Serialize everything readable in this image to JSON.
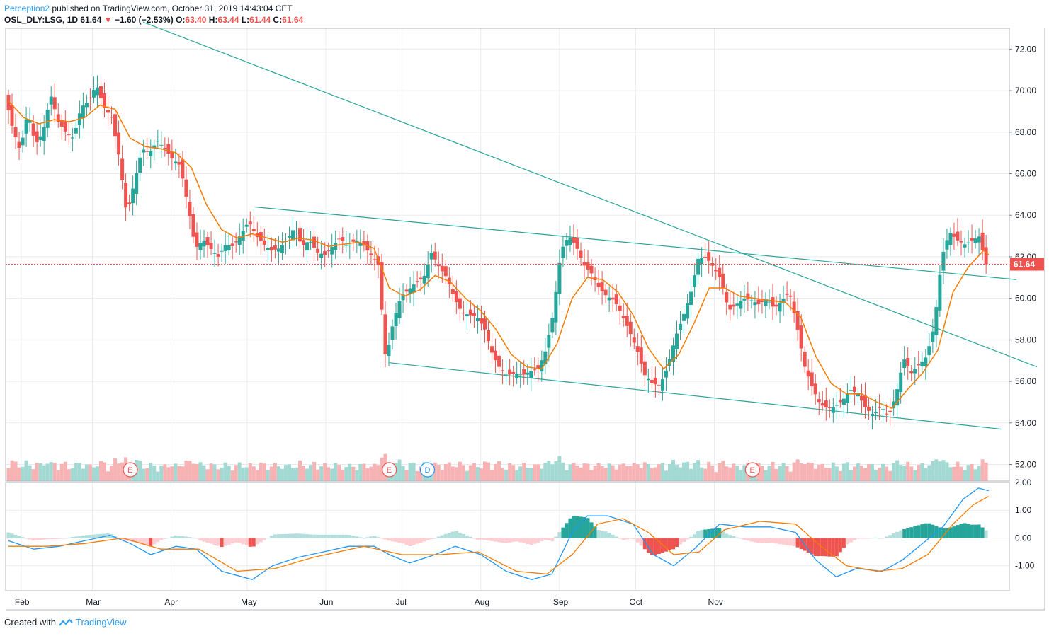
{
  "header": {
    "author": "Perception2",
    "published": "published on TradingView.com, October 31, 2019 14:43:04 CET",
    "symbol": "OSL_DLY:LSG, 1D",
    "last": "61.64",
    "change": "−1.60 (−2.53%)",
    "open_label": "O:",
    "open": "63.40",
    "high_label": "H:",
    "high": "63.44",
    "low_label": "L:",
    "low": "61.44",
    "close_label": "C:",
    "close": "61.64"
  },
  "footer": {
    "created_with": "Created with",
    "brand": "TradingView"
  },
  "colors": {
    "up": "#26a69a",
    "down": "#ef5350",
    "ema": "#f57c00",
    "trend": "#26a69a",
    "macd": "#2196f3",
    "signal": "#f57c00",
    "price_line": "#ef5350",
    "grid": "#e8ecf1"
  },
  "chart_data": {
    "type": "candlestick",
    "symbol": "OSL_DLY:LSG",
    "interval": "1D",
    "y_axis": {
      "ticks": [
        "72.00",
        "70.00",
        "68.00",
        "66.00",
        "64.00",
        "62.00",
        "60.00",
        "58.00",
        "56.00",
        "54.00",
        "52.00"
      ],
      "ylim": [
        51.2,
        73.0
      ]
    },
    "macd_axis": {
      "ticks": [
        "2.00",
        "1.00",
        "0.00",
        "-1.00"
      ],
      "ylim": [
        -1.9,
        2.0
      ]
    },
    "x_axis": {
      "labels": [
        "Feb",
        "Mar",
        "Apr",
        "May",
        "Jun",
        "Jul",
        "Aug",
        "Sep",
        "Oct",
        "Nov"
      ]
    },
    "last_price_label": "61.64",
    "last_price": 61.64,
    "event_markers": [
      {
        "label": "E",
        "day": 48
      },
      {
        "label": "E",
        "day": 150
      },
      {
        "label": "D",
        "day": 165
      },
      {
        "label": "E",
        "day": 293
      }
    ],
    "trendlines": [
      {
        "from": [
          53,
          73.3
        ],
        "to": [
          405,
          56.7
        ]
      },
      {
        "from": [
          97,
          64.4
        ],
        "to": [
          397,
          60.9
        ]
      },
      {
        "from": [
          150,
          56.9
        ],
        "to": [
          391,
          53.7
        ]
      }
    ],
    "close_points": [
      [
        0,
        69.8
      ],
      [
        3,
        68.2
      ],
      [
        6,
        67.1
      ],
      [
        9,
        69.0
      ],
      [
        12,
        67.4
      ],
      [
        15,
        68.0
      ],
      [
        18,
        69.8
      ],
      [
        21,
        68.5
      ],
      [
        24,
        68.0
      ],
      [
        27,
        67.7
      ],
      [
        30,
        69.2
      ],
      [
        33,
        69.5
      ],
      [
        36,
        70.3
      ],
      [
        39,
        69.2
      ],
      [
        42,
        68.7
      ],
      [
        45,
        66.8
      ],
      [
        48,
        64.0
      ],
      [
        51,
        65.6
      ],
      [
        54,
        67.2
      ],
      [
        57,
        67.0
      ],
      [
        60,
        67.6
      ],
      [
        63,
        67.2
      ],
      [
        66,
        66.7
      ],
      [
        69,
        66.4
      ],
      [
        72,
        64.5
      ],
      [
        75,
        62.4
      ],
      [
        78,
        62.8
      ],
      [
        81,
        62.4
      ],
      [
        84,
        62.0
      ],
      [
        87,
        62.6
      ],
      [
        90,
        62.5
      ],
      [
        93,
        63.1
      ],
      [
        96,
        63.7
      ],
      [
        99,
        63.0
      ],
      [
        102,
        62.6
      ],
      [
        105,
        62.3
      ],
      [
        108,
        62.4
      ],
      [
        111,
        62.8
      ],
      [
        114,
        63.4
      ],
      [
        117,
        62.5
      ],
      [
        120,
        62.8
      ],
      [
        123,
        62.2
      ],
      [
        126,
        62.1
      ],
      [
        129,
        62.5
      ],
      [
        132,
        62.9
      ],
      [
        135,
        62.5
      ],
      [
        138,
        62.8
      ],
      [
        141,
        62.6
      ],
      [
        144,
        62.1
      ],
      [
        147,
        61.6
      ],
      [
        150,
        57.0
      ],
      [
        153,
        58.9
      ],
      [
        156,
        60.1
      ],
      [
        159,
        60.4
      ],
      [
        162,
        60.8
      ],
      [
        165,
        61.0
      ],
      [
        168,
        62.2
      ],
      [
        171,
        61.5
      ],
      [
        174,
        61.0
      ],
      [
        177,
        60.0
      ],
      [
        180,
        59.3
      ],
      [
        183,
        59.2
      ],
      [
        186,
        59.1
      ],
      [
        189,
        58.5
      ],
      [
        192,
        57.3
      ],
      [
        195,
        56.6
      ],
      [
        198,
        56.3
      ],
      [
        201,
        56.4
      ],
      [
        204,
        56.3
      ],
      [
        207,
        56.5
      ],
      [
        210,
        56.6
      ],
      [
        213,
        57.5
      ],
      [
        216,
        59.3
      ],
      [
        219,
        62.3
      ],
      [
        222,
        63.0
      ],
      [
        225,
        62.5
      ],
      [
        228,
        61.6
      ],
      [
        231,
        61.2
      ],
      [
        234,
        60.5
      ],
      [
        237,
        60.1
      ],
      [
        240,
        59.9
      ],
      [
        243,
        59.2
      ],
      [
        246,
        58.4
      ],
      [
        249,
        57.5
      ],
      [
        252,
        56.3
      ],
      [
        255,
        55.9
      ],
      [
        258,
        55.8
      ],
      [
        261,
        56.7
      ],
      [
        264,
        58.1
      ],
      [
        267,
        59.1
      ],
      [
        270,
        60.2
      ],
      [
        273,
        61.9
      ],
      [
        276,
        62.0
      ],
      [
        279,
        61.5
      ],
      [
        282,
        60.9
      ],
      [
        285,
        59.4
      ],
      [
        288,
        59.7
      ],
      [
        291,
        60.0
      ],
      [
        294,
        59.9
      ],
      [
        297,
        59.7
      ],
      [
        300,
        60.0
      ],
      [
        303,
        59.5
      ],
      [
        306,
        59.9
      ],
      [
        309,
        60.3
      ],
      [
        312,
        58.6
      ],
      [
        315,
        56.7
      ],
      [
        318,
        55.7
      ],
      [
        321,
        54.9
      ],
      [
        324,
        54.7
      ],
      [
        327,
        54.8
      ],
      [
        330,
        55.1
      ],
      [
        333,
        55.6
      ],
      [
        336,
        55.4
      ],
      [
        339,
        54.7
      ],
      [
        342,
        54.4
      ],
      [
        345,
        54.8
      ],
      [
        348,
        54.3
      ],
      [
        351,
        55.4
      ],
      [
        354,
        57.1
      ],
      [
        357,
        56.4
      ],
      [
        360,
        56.8
      ],
      [
        363,
        57.2
      ],
      [
        366,
        58.7
      ],
      [
        369,
        62.0
      ],
      [
        372,
        63.2
      ],
      [
        375,
        62.8
      ],
      [
        378,
        62.6
      ],
      [
        381,
        62.8
      ],
      [
        384,
        63.0
      ],
      [
        386,
        61.64
      ]
    ],
    "ema_points": [
      [
        0,
        69.5
      ],
      [
        6,
        68.7
      ],
      [
        12,
        68.4
      ],
      [
        18,
        68.6
      ],
      [
        24,
        68.5
      ],
      [
        30,
        68.7
      ],
      [
        36,
        69.3
      ],
      [
        42,
        69.1
      ],
      [
        48,
        67.7
      ],
      [
        54,
        67.3
      ],
      [
        60,
        67.2
      ],
      [
        66,
        67.0
      ],
      [
        72,
        66.3
      ],
      [
        78,
        64.5
      ],
      [
        84,
        63.3
      ],
      [
        90,
        62.9
      ],
      [
        96,
        63.1
      ],
      [
        102,
        62.9
      ],
      [
        108,
        62.7
      ],
      [
        114,
        62.9
      ],
      [
        120,
        62.8
      ],
      [
        126,
        62.5
      ],
      [
        132,
        62.6
      ],
      [
        138,
        62.7
      ],
      [
        144,
        62.4
      ],
      [
        150,
        60.5
      ],
      [
        156,
        60.1
      ],
      [
        162,
        60.4
      ],
      [
        168,
        61.1
      ],
      [
        174,
        60.8
      ],
      [
        180,
        60.0
      ],
      [
        186,
        59.4
      ],
      [
        192,
        58.5
      ],
      [
        198,
        57.3
      ],
      [
        204,
        56.7
      ],
      [
        210,
        56.6
      ],
      [
        216,
        57.8
      ],
      [
        222,
        60.0
      ],
      [
        228,
        61.0
      ],
      [
        234,
        60.9
      ],
      [
        240,
        60.3
      ],
      [
        246,
        59.2
      ],
      [
        252,
        57.6
      ],
      [
        258,
        56.6
      ],
      [
        264,
        57.3
      ],
      [
        270,
        58.8
      ],
      [
        276,
        60.5
      ],
      [
        282,
        60.5
      ],
      [
        288,
        60.1
      ],
      [
        294,
        60.0
      ],
      [
        300,
        59.9
      ],
      [
        306,
        59.8
      ],
      [
        312,
        59.1
      ],
      [
        318,
        57.2
      ],
      [
        324,
        55.9
      ],
      [
        330,
        55.4
      ],
      [
        336,
        55.4
      ],
      [
        342,
        55.0
      ],
      [
        348,
        54.7
      ],
      [
        354,
        55.6
      ],
      [
        360,
        56.4
      ],
      [
        366,
        57.5
      ],
      [
        372,
        60.3
      ],
      [
        378,
        61.5
      ],
      [
        384,
        62.3
      ],
      [
        386,
        62.1
      ]
    ],
    "macd_points": [
      [
        0,
        -0.1
      ],
      [
        10,
        -0.4
      ],
      [
        20,
        -0.3
      ],
      [
        30,
        -0.1
      ],
      [
        40,
        0.1
      ],
      [
        48,
        -0.2
      ],
      [
        56,
        -0.6
      ],
      [
        66,
        -0.3
      ],
      [
        74,
        -0.4
      ],
      [
        84,
        -1.2
      ],
      [
        96,
        -1.5
      ],
      [
        104,
        -1.0
      ],
      [
        114,
        -0.7
      ],
      [
        124,
        -0.5
      ],
      [
        134,
        -0.3
      ],
      [
        144,
        -0.3
      ],
      [
        150,
        -0.6
      ],
      [
        158,
        -0.9
      ],
      [
        168,
        -0.6
      ],
      [
        176,
        -0.3
      ],
      [
        186,
        -0.6
      ],
      [
        196,
        -1.2
      ],
      [
        206,
        -1.5
      ],
      [
        214,
        -1.3
      ],
      [
        222,
        0.2
      ],
      [
        228,
        0.8
      ],
      [
        236,
        0.8
      ],
      [
        246,
        0.5
      ],
      [
        254,
        -0.6
      ],
      [
        262,
        -1.0
      ],
      [
        270,
        -0.4
      ],
      [
        280,
        0.5
      ],
      [
        290,
        0.4
      ],
      [
        300,
        0.4
      ],
      [
        310,
        0.2
      ],
      [
        318,
        -0.8
      ],
      [
        326,
        -1.4
      ],
      [
        334,
        -1.1
      ],
      [
        344,
        -1.2
      ],
      [
        352,
        -0.8
      ],
      [
        360,
        -0.2
      ],
      [
        368,
        0.4
      ],
      [
        376,
        1.4
      ],
      [
        382,
        1.8
      ],
      [
        386,
        1.7
      ]
    ],
    "signal_points": [
      [
        0,
        -0.3
      ],
      [
        15,
        -0.3
      ],
      [
        30,
        -0.2
      ],
      [
        45,
        0.0
      ],
      [
        60,
        -0.4
      ],
      [
        75,
        -0.4
      ],
      [
        90,
        -1.2
      ],
      [
        105,
        -1.1
      ],
      [
        120,
        -0.7
      ],
      [
        140,
        -0.3
      ],
      [
        155,
        -0.6
      ],
      [
        170,
        -0.6
      ],
      [
        185,
        -0.5
      ],
      [
        200,
        -1.2
      ],
      [
        212,
        -1.3
      ],
      [
        222,
        -0.6
      ],
      [
        232,
        0.5
      ],
      [
        242,
        0.7
      ],
      [
        252,
        0.2
      ],
      [
        262,
        -0.6
      ],
      [
        272,
        -0.5
      ],
      [
        282,
        0.3
      ],
      [
        296,
        0.6
      ],
      [
        310,
        0.5
      ],
      [
        320,
        -0.3
      ],
      [
        330,
        -1.0
      ],
      [
        342,
        -1.2
      ],
      [
        352,
        -1.1
      ],
      [
        362,
        -0.6
      ],
      [
        372,
        0.5
      ],
      [
        380,
        1.2
      ],
      [
        386,
        1.5
      ]
    ]
  }
}
